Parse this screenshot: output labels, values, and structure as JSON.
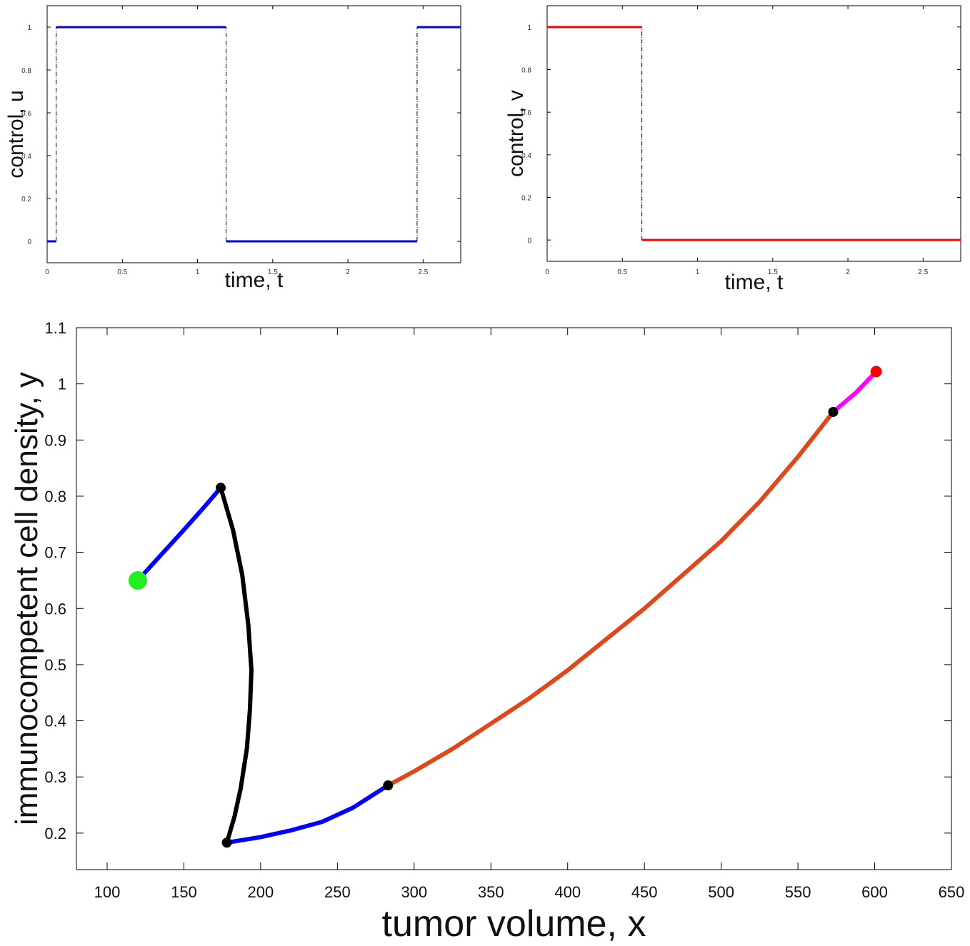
{
  "chart_data": [
    {
      "id": "control_u",
      "type": "line",
      "xlabel": "time, t",
      "ylabel": "control, u",
      "xlim": [
        0,
        2.75
      ],
      "ylim": [
        -0.1,
        1.1
      ],
      "xticks": [
        0,
        0.5,
        1,
        1.5,
        2,
        2.5
      ],
      "xtick_labels": [
        "0",
        "0.5",
        "1",
        "1.5",
        "2",
        "2.5"
      ],
      "yticks": [
        0,
        0.2,
        0.4,
        0.6,
        0.8,
        1
      ],
      "ytick_labels": [
        "0",
        "0.2",
        "0.4",
        "0.6",
        "0.8",
        "1"
      ],
      "grid": false,
      "series": [
        {
          "color": "#0000ff",
          "style": "piecewise-constant",
          "segments": [
            {
              "t_start": 0,
              "t_end": 0.06,
              "value": 0
            },
            {
              "t_start": 0.06,
              "t_end": 1.19,
              "value": 1
            },
            {
              "t_start": 1.19,
              "t_end": 2.46,
              "value": 0
            },
            {
              "t_start": 2.46,
              "t_end": 2.75,
              "value": 1
            }
          ],
          "switch_times": [
            0.06,
            1.19,
            2.46
          ],
          "switch_line_color": "#000000"
        }
      ]
    },
    {
      "id": "control_v",
      "type": "line",
      "xlabel": "time, t",
      "ylabel": "control, v",
      "xlim": [
        0,
        2.75
      ],
      "ylim": [
        -0.1,
        1.1
      ],
      "xticks": [
        0,
        0.5,
        1,
        1.5,
        2,
        2.5
      ],
      "xtick_labels": [
        "0",
        "0.5",
        "1",
        "1.5",
        "2",
        "2.5"
      ],
      "yticks": [
        0,
        0.2,
        0.4,
        0.6,
        0.8,
        1
      ],
      "ytick_labels": [
        "0",
        "0.2",
        "0.4",
        "0.6",
        "0.8",
        "1"
      ],
      "grid": false,
      "series": [
        {
          "color": "#ff0000",
          "style": "piecewise-constant",
          "segments": [
            {
              "t_start": 0,
              "t_end": 0.63,
              "value": 1
            },
            {
              "t_start": 0.63,
              "t_end": 2.75,
              "value": 0
            }
          ],
          "switch_times": [
            0.63
          ],
          "switch_line_color": "#000000"
        }
      ]
    },
    {
      "id": "phase_portrait",
      "type": "line",
      "xlabel": "tumor volume, x",
      "ylabel": "immunocompetent cell density, y",
      "xlim": [
        80,
        650
      ],
      "ylim": [
        0.135,
        1.1
      ],
      "xticks": [
        100,
        150,
        200,
        250,
        300,
        350,
        400,
        450,
        500,
        550,
        600,
        650
      ],
      "xtick_labels": [
        "100",
        "150",
        "200",
        "250",
        "300",
        "350",
        "400",
        "450",
        "500",
        "550",
        "600",
        "650"
      ],
      "yticks": [
        0.2,
        0.3,
        0.4,
        0.5,
        0.6,
        0.7,
        0.8,
        0.9,
        1,
        1.1
      ],
      "ytick_labels": [
        "0.2",
        "0.3",
        "0.4",
        "0.5",
        "0.6",
        "0.7",
        "0.8",
        "0.9",
        "1",
        "1.1"
      ],
      "grid": false,
      "series": [
        {
          "color": "#0000ff",
          "points": [
            [
              120,
              0.65
            ],
            [
              135,
              0.695
            ],
            [
              150,
              0.74
            ],
            [
              163,
              0.78
            ],
            [
              174,
              0.815
            ]
          ]
        },
        {
          "color": "#000000",
          "points": [
            [
              174,
              0.815
            ],
            [
              182,
              0.74
            ],
            [
              188,
              0.66
            ],
            [
              192,
              0.57
            ],
            [
              194,
              0.49
            ],
            [
              193,
              0.42
            ],
            [
              191,
              0.35
            ],
            [
              187,
              0.28
            ],
            [
              183,
              0.23
            ],
            [
              178,
              0.183
            ]
          ]
        },
        {
          "color": "#0000ff",
          "points": [
            [
              178,
              0.183
            ],
            [
              200,
              0.193
            ],
            [
              220,
              0.205
            ],
            [
              240,
              0.22
            ],
            [
              260,
              0.245
            ],
            [
              283,
              0.285
            ]
          ]
        },
        {
          "color": "#e0471a",
          "points": [
            [
              283,
              0.285
            ],
            [
              300,
              0.31
            ],
            [
              325,
              0.35
            ],
            [
              350,
              0.395
            ],
            [
              375,
              0.44
            ],
            [
              400,
              0.49
            ],
            [
              425,
              0.545
            ],
            [
              450,
              0.6
            ],
            [
              475,
              0.66
            ],
            [
              500,
              0.72
            ],
            [
              525,
              0.79
            ],
            [
              550,
              0.87
            ],
            [
              573,
              0.95
            ]
          ]
        },
        {
          "color": "#ff00ff",
          "points": [
            [
              573,
              0.95
            ],
            [
              588,
              0.985
            ],
            [
              601,
              1.022
            ]
          ]
        }
      ],
      "markers": [
        {
          "kind": "start",
          "x": 120,
          "y": 0.65,
          "color": "#22ee22"
        },
        {
          "kind": "switch",
          "x": 174,
          "y": 0.815,
          "color": "#000000"
        },
        {
          "kind": "switch",
          "x": 178,
          "y": 0.183,
          "color": "#000000"
        },
        {
          "kind": "switch",
          "x": 283,
          "y": 0.285,
          "color": "#000000"
        },
        {
          "kind": "switch",
          "x": 573,
          "y": 0.95,
          "color": "#000000"
        },
        {
          "kind": "end",
          "x": 601,
          "y": 1.022,
          "color": "#ff0000"
        }
      ]
    }
  ]
}
